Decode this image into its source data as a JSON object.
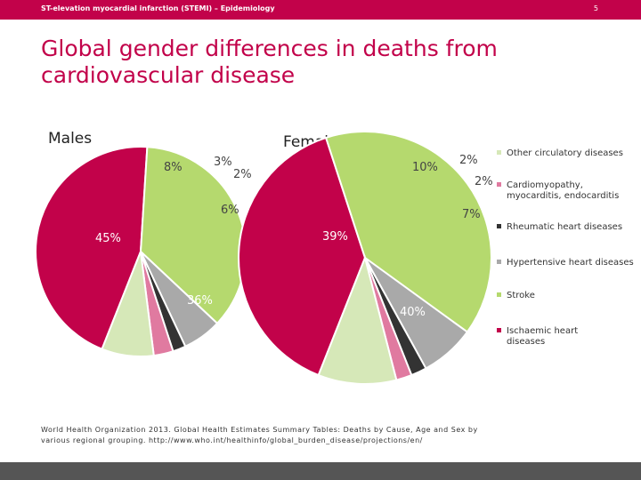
{
  "header": {
    "text": "ST-elevation myocardial infarction (STEMI) – Epidemiology",
    "page": "5"
  },
  "title": "Global gender differences in deaths from cardiovascular disease",
  "chart_data": [
    {
      "type": "pie",
      "title": "Males",
      "categories": [
        "Ischaemic heart diseases",
        "Stroke",
        "Hypertensive heart diseases",
        "Rheumatic heart diseases",
        "Cardiomyopathy, myocarditis, endocarditis",
        "Other circulatory diseases"
      ],
      "values": [
        45,
        36,
        6,
        2,
        3,
        8
      ],
      "labels": [
        "45%",
        "36%",
        "6%",
        "2%",
        "3%",
        "8%"
      ]
    },
    {
      "type": "pie",
      "title": "Females",
      "categories": [
        "Ischaemic heart diseases",
        "Stroke",
        "Hypertensive heart diseases",
        "Rheumatic heart diseases",
        "Cardiomyopathy, myocarditis, endocarditis",
        "Other circulatory diseases"
      ],
      "values": [
        39,
        40,
        7,
        2,
        2,
        10
      ],
      "labels": [
        "39%",
        "40%",
        "7%",
        "2%",
        "2%",
        "10%"
      ]
    }
  ],
  "colors": [
    "#c2024a",
    "#b5d96e",
    "#a9a9a9",
    "#333333",
    "#e07aa0",
    "#d6e8b8"
  ],
  "legend": [
    {
      "label": "Other circulatory diseases",
      "color": "#d6e8b8"
    },
    {
      "label": "Cardiomyopathy,\nmyocarditis, endocarditis",
      "color": "#e07aa0"
    },
    {
      "label": "Rheumatic heart diseases",
      "color": "#333333"
    },
    {
      "label": "Hypertensive heart diseases",
      "color": "#a9a9a9"
    },
    {
      "label": "Stroke",
      "color": "#b5d96e"
    },
    {
      "label": "Ischaemic heart\ndiseases",
      "color": "#c2024a"
    }
  ],
  "source": "World Health Organization 2013. Global Health Estimates Summary Tables: Deaths by Cause, Age and Sex by various regional grouping. http://www.who.int/healthinfo/global_burden_disease/projections/en/"
}
